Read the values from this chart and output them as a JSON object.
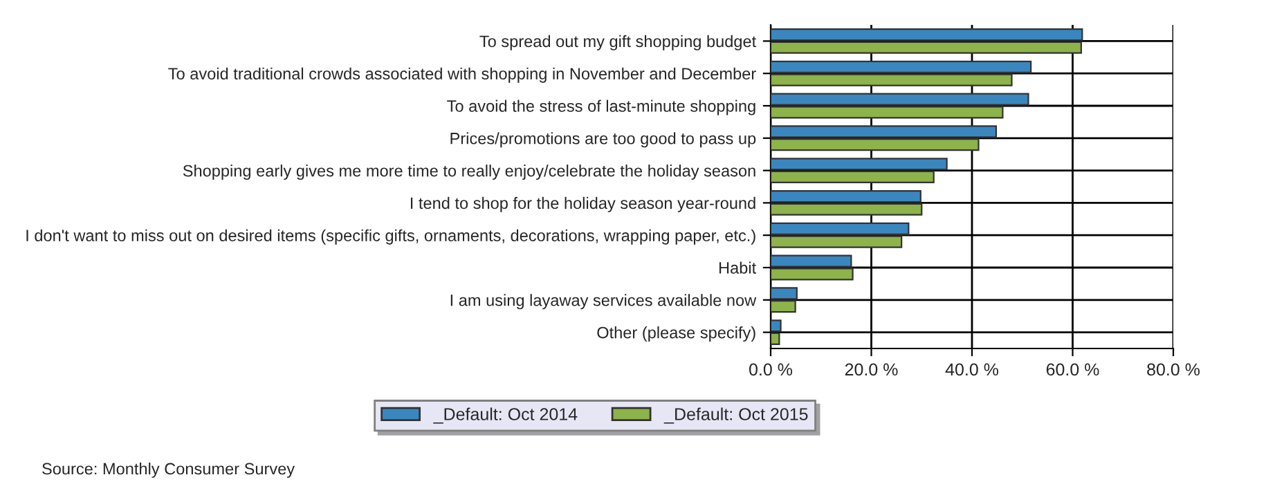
{
  "chart_data": {
    "type": "bar",
    "orientation": "horizontal",
    "categories": [
      "To spread out my gift shopping budget",
      "To avoid traditional crowds associated with shopping in November and December",
      "To avoid the stress of last-minute shopping",
      "Prices/promotions are too good to pass up",
      "Shopping early gives me more time to really enjoy/celebrate the holiday season",
      "I tend to shop for the holiday season year-round",
      "I don't want to miss out on desired items (specific gifts, ornaments, decorations, wrapping paper, etc.)",
      "Habit",
      "I am using layaway services available now",
      "Other (please specify)"
    ],
    "series": [
      {
        "name": "_Default: Oct 2014",
        "color": "#3a87c0",
        "values": [
          61.9,
          51.7,
          51.2,
          44.8,
          35.0,
          29.8,
          27.4,
          16.0,
          5.2,
          2.0
        ]
      },
      {
        "name": "_Default: Oct 2015",
        "color": "#8db34a",
        "values": [
          61.7,
          47.9,
          46.1,
          41.3,
          32.4,
          30.0,
          26.0,
          16.3,
          4.9,
          1.7
        ]
      }
    ],
    "xlim": [
      0,
      80
    ],
    "xticks": [
      {
        "value": 0,
        "label": "0.0 %"
      },
      {
        "value": 20,
        "label": "20.0 %"
      },
      {
        "value": 40,
        "label": "40.0 %"
      },
      {
        "value": 60,
        "label": "60.0 %"
      },
      {
        "value": 80,
        "label": "80.0 %"
      }
    ],
    "grid": true,
    "legend": "bottom",
    "annotations": [
      "Source: Monthly Consumer Survey"
    ]
  }
}
